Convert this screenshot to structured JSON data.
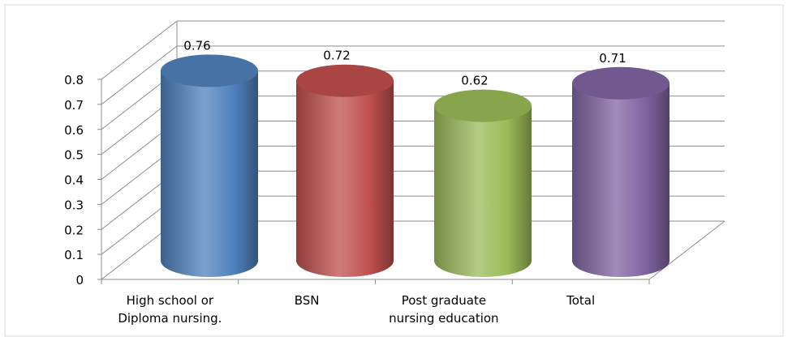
{
  "chart_data": {
    "type": "bar",
    "style": "3d-cylinder",
    "title": "",
    "xlabel": "",
    "ylabel": "",
    "ylim": [
      0,
      0.8
    ],
    "yticks": [
      "0",
      "0.1",
      "0.2",
      "0.3",
      "0.4",
      "0.5",
      "0.6",
      "0.7",
      "0.8"
    ],
    "grid": true,
    "legend": "none",
    "categories": [
      [
        "High school or",
        "Diploma nursing."
      ],
      [
        "BSN"
      ],
      [
        "Post graduate",
        "nursing education"
      ],
      [
        "Total"
      ]
    ],
    "values": [
      0.76,
      0.72,
      0.62,
      0.71
    ],
    "data_labels": [
      "0.76",
      "0.72",
      "0.62",
      "0.71"
    ],
    "colors": [
      "#4f81bd",
      "#c0504d",
      "#9bbb59",
      "#8064a2"
    ]
  }
}
